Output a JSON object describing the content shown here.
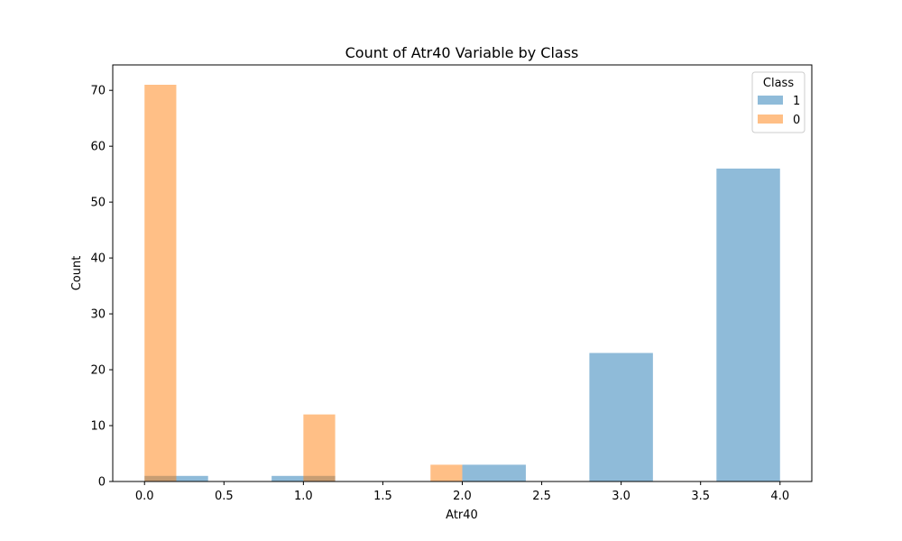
{
  "chart_data": {
    "type": "bar",
    "title": "Count of Atr40 Variable by Class",
    "xlabel": "Atr40",
    "ylabel": "Count",
    "xlim": [
      -0.2,
      4.2
    ],
    "ylim": [
      0,
      74.55
    ],
    "xticks": [
      "0.0",
      "0.5",
      "1.0",
      "1.5",
      "2.0",
      "2.5",
      "3.0",
      "3.5",
      "4.0"
    ],
    "yticks": [
      "0",
      "10",
      "20",
      "30",
      "40",
      "50",
      "60",
      "70"
    ],
    "grid": false,
    "legend": {
      "title": "Class",
      "placement": "top-right"
    },
    "series": [
      {
        "name": "1",
        "color": "#1f77b4",
        "opacity": 0.5,
        "bins": [
          {
            "x0": 0.0,
            "x1": 0.4,
            "count": 1
          },
          {
            "x0": 0.8,
            "x1": 1.2,
            "count": 1
          },
          {
            "x0": 2.0,
            "x1": 2.4,
            "count": 3
          },
          {
            "x0": 2.8,
            "x1": 3.2,
            "count": 23
          },
          {
            "x0": 3.6,
            "x1": 4.0,
            "count": 56
          }
        ]
      },
      {
        "name": "0",
        "color": "#ff7f0e",
        "opacity": 0.5,
        "bins": [
          {
            "x0": 0.0,
            "x1": 0.2,
            "count": 71
          },
          {
            "x0": 1.0,
            "x1": 1.2,
            "count": 12
          },
          {
            "x0": 1.8,
            "x1": 2.0,
            "count": 3
          }
        ]
      }
    ]
  }
}
